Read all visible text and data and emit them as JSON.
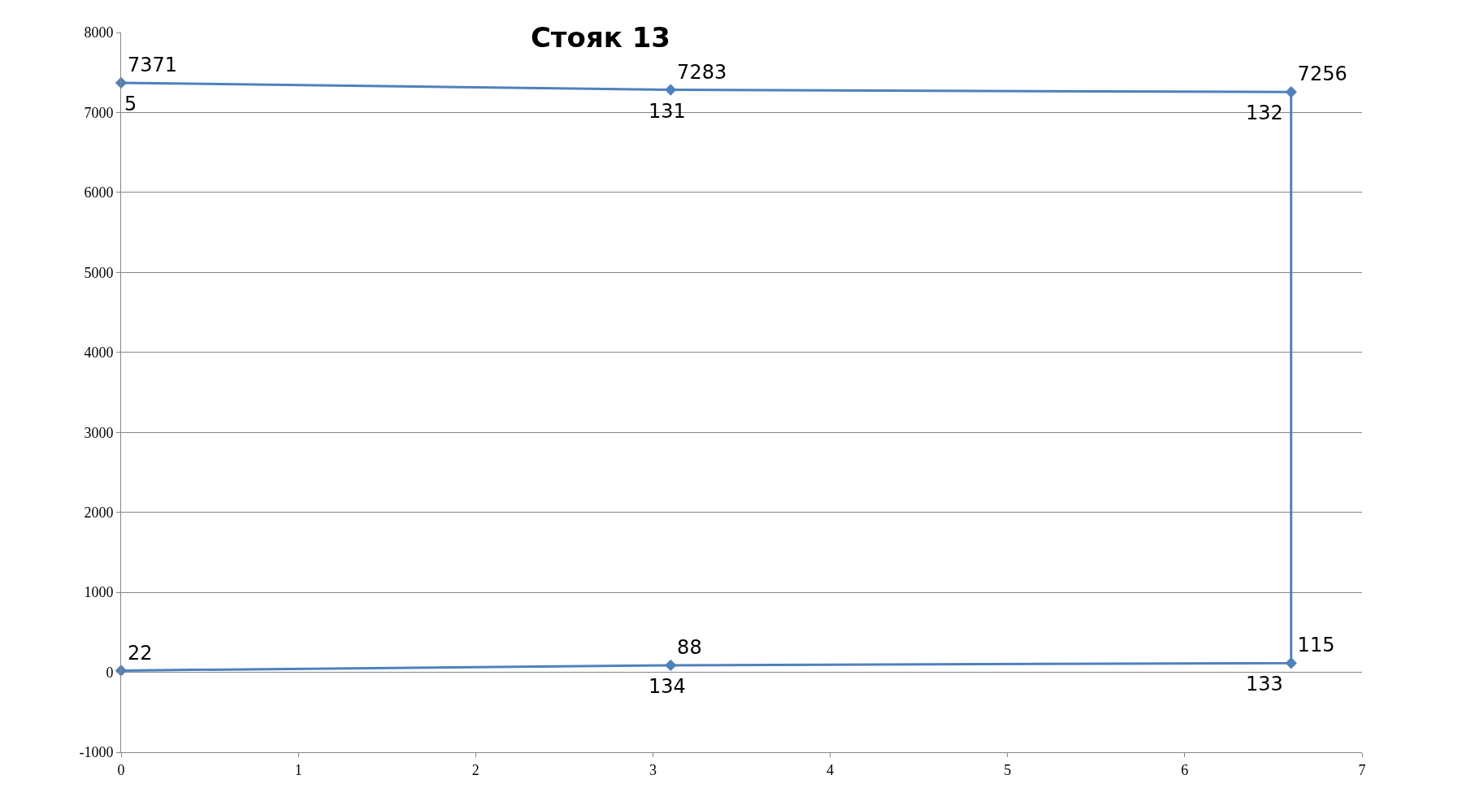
{
  "chart_data": {
    "type": "line",
    "title": "Стояк 13",
    "series": [
      {
        "color": "#4f81bd",
        "x": [
          0,
          3.1,
          6.6,
          6.6,
          3.1,
          0
        ],
        "values": [
          7371,
          7283,
          7256,
          115,
          88,
          22
        ],
        "value_labels": [
          "7371",
          "7283",
          "7256",
          "115",
          "88",
          "22"
        ]
      }
    ],
    "annotations": [
      {
        "text": "5",
        "x": 0,
        "y": 7371
      },
      {
        "text": "131",
        "x": 3.1,
        "y": 7283
      },
      {
        "text": "132",
        "x": 6.6,
        "y": 7256
      },
      {
        "text": "133",
        "x": 6.6,
        "y": 115
      },
      {
        "text": "134",
        "x": 3.1,
        "y": 88
      }
    ],
    "xlim": [
      0,
      7
    ],
    "xticks": [
      0,
      1,
      2,
      3,
      4,
      5,
      6,
      7
    ],
    "ylim": [
      -1000,
      8000
    ],
    "yticks": [
      -1000,
      0,
      1000,
      2000,
      3000,
      4000,
      5000,
      6000,
      7000,
      8000
    ],
    "grid": "y",
    "legend": false,
    "marker": "diamond",
    "line_style": "solid"
  }
}
